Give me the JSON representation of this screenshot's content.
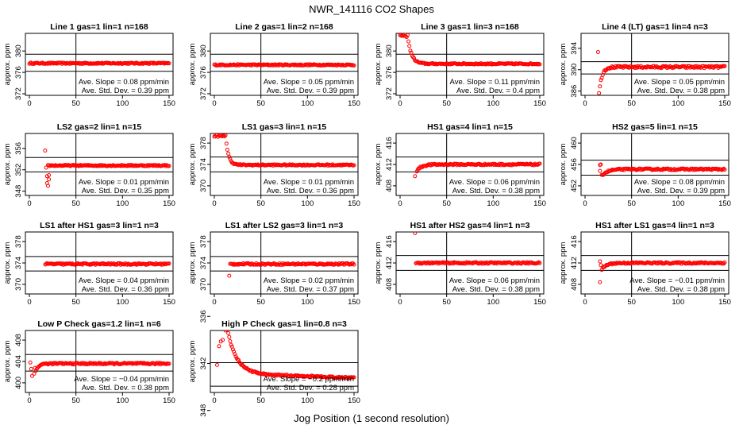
{
  "figure": {
    "title": "NWR_141116  CO2 Shapes",
    "xlabel": "Jog Position (1 second resolution)"
  },
  "colors": {
    "points": "#ff0000",
    "lines": "#000000",
    "frame": "#000000"
  },
  "chart_data": [
    {
      "type": "scatter",
      "title": "Line 1 gas=1 lin=1 n=168",
      "ylabel": "approx. ppm",
      "xlim": [
        0,
        150
      ],
      "xticks": [
        0,
        50,
        100,
        150
      ],
      "ylim": [
        372,
        383
      ],
      "yticks": [
        372,
        376,
        380
      ],
      "vline": 50,
      "hlines": [
        376.2,
        379.4
      ],
      "slope": "Ave. Slope = 0.08  ppm/min",
      "std": "Ave. Std. Dev. = 0.39  ppm",
      "shape": {
        "kind": "flat",
        "x0": 0,
        "x1": 150,
        "y": 377.7,
        "noise": 0.12
      }
    },
    {
      "type": "scatter",
      "title": "Line 2 gas=1 lin=2 n=168",
      "ylabel": "approx. ppm",
      "xlim": [
        0,
        150
      ],
      "xticks": [
        0,
        50,
        100,
        150
      ],
      "ylim": [
        372,
        383
      ],
      "yticks": [
        372,
        376,
        380
      ],
      "vline": 50,
      "hlines": [
        376.2,
        379.4
      ],
      "slope": "Ave. Slope = 0.05  ppm/min",
      "std": "Ave. Std. Dev. = 0.39  ppm",
      "shape": {
        "kind": "flat",
        "x0": 0,
        "x1": 150,
        "y": 377.4,
        "noise": 0.12
      }
    },
    {
      "type": "scatter",
      "title": "Line 3 gas=1 lin=3 n=168",
      "ylabel": "approx. ppm",
      "xlim": [
        0,
        150
      ],
      "xticks": [
        0,
        50,
        100,
        150
      ],
      "ylim": [
        372,
        383
      ],
      "yticks": [
        372,
        376,
        380
      ],
      "vline": 50,
      "hlines": [
        376.2,
        379.4
      ],
      "slope": "Ave. Slope = 0.11  ppm/min",
      "std": "Ave. Std. Dev. = 0.4  ppm",
      "shape": {
        "kind": "decay",
        "x0": 0,
        "x1": 150,
        "y": 377.6,
        "noise": 0.12,
        "start": 383,
        "tau": 4,
        "delay": 8
      }
    },
    {
      "type": "scatter",
      "title": "Line 4 (LT) gas=1 lin=4 n=3",
      "ylabel": "approx. ppm",
      "xlim": [
        0,
        150
      ],
      "xticks": [
        0,
        50,
        100,
        150
      ],
      "ylim": [
        385.5,
        396.5
      ],
      "yticks": [
        386,
        390,
        394
      ],
      "vline": 50,
      "hlines": [
        389.2,
        391.5
      ],
      "slope": "Ave. Slope = 0.05  ppm/min",
      "std": "Ave. Std. Dev. = 0.38  ppm",
      "shape": {
        "kind": "rise",
        "x0": 15,
        "x1": 150,
        "y": 390.5,
        "noise": 0.2,
        "start": 385.5,
        "tau": 3,
        "delay": 0,
        "extra": [
          [
            14,
            393.3
          ]
        ]
      }
    },
    {
      "type": "scatter",
      "title": "LS2 gas=2 lin=1 n=15",
      "ylabel": "approx. ppm",
      "xlim": [
        0,
        150
      ],
      "xticks": [
        0,
        50,
        100,
        150
      ],
      "ylim": [
        347.5,
        358.5
      ],
      "yticks": [
        348,
        352,
        356
      ],
      "vline": 50,
      "hlines": [
        351.6,
        354.3
      ],
      "slope": "Ave. Slope = 0.01  ppm/min",
      "std": "Ave. Std. Dev. = 0.35  ppm",
      "shape": {
        "kind": "flat",
        "x0": 20,
        "x1": 150,
        "y": 352.8,
        "noise": 0.12,
        "extra": [
          [
            17,
            355.6
          ],
          [
            18,
            352.4
          ],
          [
            19,
            350.8
          ],
          [
            19,
            349.5
          ],
          [
            20,
            349.0
          ],
          [
            21,
            350.2
          ],
          [
            21,
            351.0
          ]
        ]
      }
    },
    {
      "type": "scatter",
      "title": "LS1 gas=3 lin=1 n=15",
      "ylabel": "approx. ppm",
      "xlim": [
        0,
        150
      ],
      "xticks": [
        0,
        50,
        100,
        150
      ],
      "ylim": [
        368.5,
        379.5
      ],
      "yticks": [
        370,
        374,
        378
      ],
      "vline": 50,
      "hlines": [
        372.6,
        375.4
      ],
      "slope": "Ave. Slope = 0.01  ppm/min",
      "std": "Ave. Std. Dev. = 0.36  ppm",
      "shape": {
        "kind": "decay",
        "x0": 0,
        "x1": 150,
        "y": 373.9,
        "noise": 0.12,
        "start": 379.5,
        "tau": 3,
        "delay": 12
      }
    },
    {
      "type": "scatter",
      "title": "HS1 gas=4 lin=1 n=15",
      "ylabel": "approx. ppm",
      "xlim": [
        0,
        150
      ],
      "xticks": [
        0,
        50,
        100,
        150
      ],
      "ylim": [
        406.5,
        417.5
      ],
      "yticks": [
        408,
        412,
        416
      ],
      "vline": 50,
      "hlines": [
        410.6,
        413.4
      ],
      "slope": "Ave. Slope = 0.06  ppm/min",
      "std": "Ave. Std. Dev. = 0.38  ppm",
      "shape": {
        "kind": "rise",
        "x0": 18,
        "x1": 150,
        "y": 412.0,
        "noise": 0.15,
        "start": 410.8,
        "tau": 5,
        "delay": 0,
        "extra": [
          [
            16,
            409.8
          ]
        ]
      }
    },
    {
      "type": "scatter",
      "title": "HS2 gas=5 lin=1 n=15",
      "ylabel": "approx. ppm",
      "xlim": [
        0,
        150
      ],
      "xticks": [
        0,
        50,
        100,
        150
      ],
      "ylim": [
        450.5,
        461.5
      ],
      "yticks": [
        452,
        456,
        460
      ],
      "vline": 50,
      "hlines": [
        454.0,
        456.8
      ],
      "slope": "Ave. Slope = 0.08  ppm/min",
      "std": "Ave. Std. Dev. = 0.39  ppm",
      "shape": {
        "kind": "rise",
        "x0": 18,
        "x1": 150,
        "y": 455.1,
        "noise": 0.15,
        "start": 453.9,
        "tau": 6,
        "delay": 0,
        "extra": [
          [
            16,
            455.9
          ],
          [
            17,
            456.0
          ],
          [
            16,
            454.8
          ]
        ]
      }
    },
    {
      "type": "scatter",
      "title": "LS1 after HS1 gas=3 lin=1 n=3",
      "ylabel": "approx. ppm",
      "xlim": [
        0,
        150
      ],
      "xticks": [
        0,
        50,
        100,
        150
      ],
      "ylim": [
        368.5,
        379.5
      ],
      "yticks": [
        370,
        374,
        378
      ],
      "vline": 50,
      "hlines": [
        372.5,
        375.2
      ],
      "slope": "Ave. Slope = 0.04  ppm/min",
      "std": "Ave. Std. Dev. = 0.36  ppm",
      "shape": {
        "kind": "flat",
        "x0": 17,
        "x1": 150,
        "y": 373.8,
        "noise": 0.15
      }
    },
    {
      "type": "scatter",
      "title": "LS1 after LS2 gas=3 lin=1 n=3",
      "ylabel": "approx. ppm",
      "xlim": [
        0,
        150
      ],
      "xticks": [
        0,
        50,
        100,
        150
      ],
      "ylim": [
        368.5,
        379.5
      ],
      "yticks": [
        370,
        374,
        378
      ],
      "vline": 50,
      "hlines": [
        372.5,
        375.2
      ],
      "slope": "Ave. Slope = 0.02  ppm/min",
      "std": "Ave. Std. Dev. = 0.37  ppm",
      "shape": {
        "kind": "flat",
        "x0": 17,
        "x1": 150,
        "y": 373.8,
        "noise": 0.15,
        "extra": [
          [
            16,
            371.6
          ]
        ]
      }
    },
    {
      "type": "scatter",
      "title": "HS1 after HS2 gas=4 lin=1 n=3",
      "ylabel": "approx. ppm",
      "xlim": [
        0,
        150
      ],
      "xticks": [
        0,
        50,
        100,
        150
      ],
      "ylim": [
        406.5,
        417.5
      ],
      "yticks": [
        408,
        412,
        416
      ],
      "vline": 50,
      "hlines": [
        410.6,
        413.4
      ],
      "slope": "Ave. Slope = 0.06  ppm/min",
      "std": "Ave. Std. Dev. = 0.38  ppm",
      "shape": {
        "kind": "flat",
        "x0": 17,
        "x1": 150,
        "y": 412.0,
        "noise": 0.15,
        "extra": [
          [
            16,
            417.6
          ]
        ]
      }
    },
    {
      "type": "scatter",
      "title": "HS1 after LS1 gas=4 lin=1 n=3",
      "ylabel": "approx. ppm",
      "xlim": [
        0,
        150
      ],
      "xticks": [
        0,
        50,
        100,
        150
      ],
      "ylim": [
        406.5,
        417.5
      ],
      "yticks": [
        408,
        412,
        416
      ],
      "vline": 50,
      "hlines": [
        410.6,
        413.4
      ],
      "slope": "Ave. Slope = −0.01  ppm/min",
      "std": "Ave. Std. Dev. = 0.38  ppm",
      "shape": {
        "kind": "rise",
        "x0": 18,
        "x1": 150,
        "y": 412.0,
        "noise": 0.15,
        "start": 410.8,
        "tau": 5,
        "delay": 0,
        "extra": [
          [
            16,
            408.4
          ],
          [
            16,
            412.3
          ],
          [
            17,
            411.6
          ]
        ]
      }
    },
    {
      "type": "scatter",
      "title": "Low P Check gas=1.2 lin=1 n=6",
      "ylabel": "approx. ppm",
      "xlim": [
        0,
        150
      ],
      "xticks": [
        0,
        50,
        100,
        150
      ],
      "ylim": [
        398.5,
        409.5
      ],
      "yticks": [
        400,
        404,
        408
      ],
      "vline": 50,
      "hlines": [
        402.2,
        405.3
      ],
      "slope": "Ave. Slope = −0.04  ppm/min",
      "std": "Ave. Std. Dev. = 0.38  ppm",
      "shape": {
        "kind": "rise",
        "x0": 7,
        "x1": 150,
        "y": 403.6,
        "noise": 0.15,
        "start": 402.2,
        "tau": 3,
        "delay": 0,
        "extra": [
          [
            1,
            403.8
          ],
          [
            2,
            402.6
          ],
          [
            3,
            401.3
          ],
          [
            5,
            401.7
          ],
          [
            6,
            402.8
          ]
        ]
      }
    },
    {
      "type": "scatter",
      "title": "High P Check gas=1 lin=0.8 n=3",
      "ylabel": "approx. ppm",
      "xlim": [
        0,
        150
      ],
      "xticks": [
        0,
        50,
        100,
        150
      ],
      "ylim": [
        345.5,
        338
      ],
      "yticks": [
        348,
        342,
        336
      ],
      "vline": 50,
      "hlines": [
        341.9,
        344.9
      ],
      "slope": "Ave. Slope = −0.2  ppm/min",
      "std": "Ave. Std. Dev. = 0.28  ppm",
      "shape": {
        "kind": "decay",
        "x0": 14,
        "x1": 150,
        "y": 343.3,
        "noise": 0.1,
        "start": 337.7,
        "tau": 10,
        "delay": 14,
        "drift": 0.004,
        "extra": [
          [
            2,
            347.6
          ],
          [
            3,
            342.2
          ],
          [
            5,
            339.8
          ],
          [
            7,
            339.2
          ],
          [
            9,
            339.0
          ],
          [
            12,
            337.8
          ]
        ]
      }
    }
  ]
}
